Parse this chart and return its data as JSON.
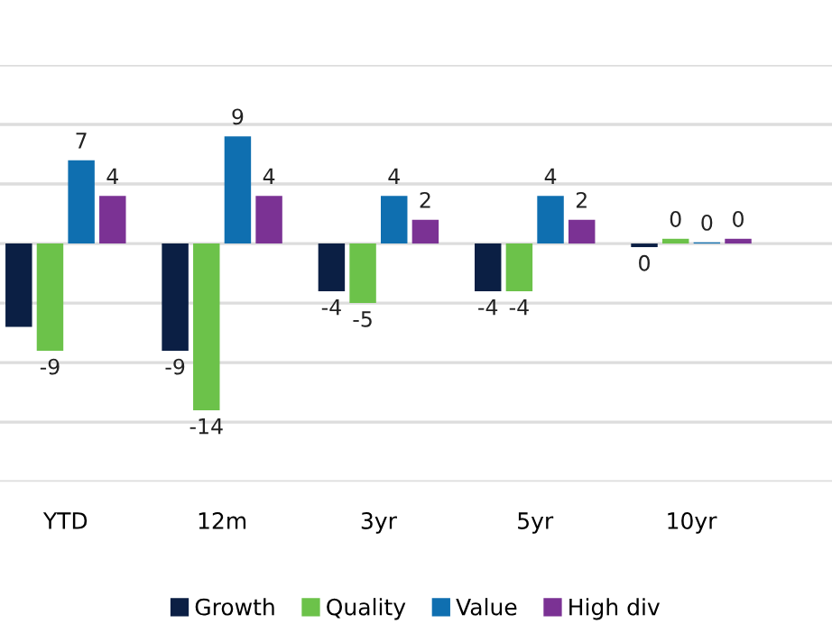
{
  "chart_data": {
    "type": "bar",
    "categories": [
      "YTD",
      "12m",
      "3yr",
      "5yr",
      "10yr"
    ],
    "series": [
      {
        "name": "Growth",
        "color": "#0b1f44",
        "values": [
          -7,
          -9,
          -4,
          -4,
          -0.3
        ],
        "value_labels": [
          null,
          "-9",
          "-4",
          "-4",
          "0"
        ]
      },
      {
        "name": "Quality",
        "color": "#6cc24a",
        "values": [
          -9,
          -14,
          -5,
          -4,
          0.4
        ],
        "value_labels": [
          "-9",
          "-14",
          "-5",
          "-4",
          "0"
        ]
      },
      {
        "name": "Value",
        "color": "#0f6fb0",
        "values": [
          7,
          9,
          4,
          4,
          0.1
        ],
        "value_labels": [
          "7",
          "9",
          "4",
          "4",
          "0"
        ]
      },
      {
        "name": "High div",
        "color": "#7b3294",
        "values": [
          4,
          4,
          2,
          2,
          0.4
        ],
        "value_labels": [
          "4",
          "4",
          "2",
          "2",
          "0"
        ]
      }
    ],
    "ylim": [
      -20,
      15
    ],
    "yticks": [
      {
        "value": -20,
        "label": null
      },
      {
        "value": -15,
        "label": null
      },
      {
        "value": -10,
        "label": null
      },
      {
        "value": -5,
        "label": null
      },
      {
        "value": 0,
        "label": null
      },
      {
        "value": 5,
        "label": null
      },
      {
        "value": 10,
        "label": null
      },
      {
        "value": 15,
        "label": null
      }
    ],
    "tick_labels": "x",
    "grid": "y",
    "legend": "bottom"
  }
}
